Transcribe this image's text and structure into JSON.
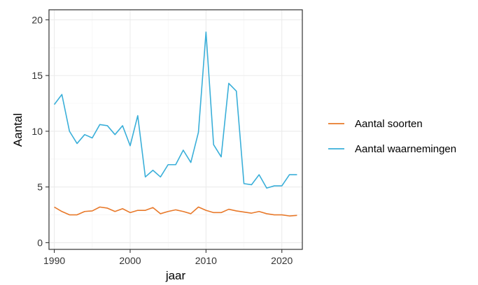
{
  "chart_data": {
    "type": "line",
    "xlabel": "jaar",
    "ylabel": "Aantal",
    "xlim": [
      1989.3,
      2022.7
    ],
    "ylim": [
      -0.6,
      20.9
    ],
    "xticks": [
      1990,
      2000,
      2010,
      2020
    ],
    "yticks": [
      0,
      5,
      10,
      15,
      20
    ],
    "grid": true,
    "legend_position": "right",
    "series": [
      {
        "name": "Aantal soorten",
        "color": "#E8792A",
        "x": [
          1990,
          1991,
          1992,
          1993,
          1994,
          1995,
          1996,
          1997,
          1998,
          1999,
          2000,
          2001,
          2002,
          2003,
          2004,
          2005,
          2006,
          2007,
          2008,
          2009,
          2010,
          2011,
          2012,
          2013,
          2014,
          2015,
          2016,
          2017,
          2018,
          2019,
          2020,
          2021,
          2022
        ],
        "y": [
          3.2,
          2.8,
          2.5,
          2.5,
          2.8,
          2.85,
          3.2,
          3.1,
          2.8,
          3.05,
          2.7,
          2.9,
          2.9,
          3.15,
          2.6,
          2.8,
          2.95,
          2.8,
          2.6,
          3.2,
          2.9,
          2.7,
          2.7,
          3.0,
          2.85,
          2.75,
          2.65,
          2.8,
          2.6,
          2.5,
          2.5,
          2.4,
          2.45
        ]
      },
      {
        "name": "Aantal waarnemingen",
        "color": "#3AAFD9",
        "x": [
          1990,
          1991,
          1992,
          1993,
          1994,
          1995,
          1996,
          1997,
          1998,
          1999,
          2000,
          2001,
          2002,
          2003,
          2004,
          2005,
          2006,
          2007,
          2008,
          2009,
          2010,
          2011,
          2012,
          2013,
          2014,
          2015,
          2016,
          2017,
          2018,
          2019,
          2020,
          2021,
          2022
        ],
        "y": [
          12.4,
          13.3,
          10.0,
          8.9,
          9.7,
          9.4,
          10.6,
          10.5,
          9.7,
          10.5,
          8.7,
          11.4,
          5.9,
          6.5,
          5.9,
          7.0,
          7.0,
          8.3,
          7.2,
          9.9,
          18.9,
          8.8,
          7.7,
          14.3,
          13.6,
          5.3,
          5.2,
          6.1,
          4.9,
          5.1,
          5.1,
          6.1,
          6.1
        ]
      }
    ]
  }
}
